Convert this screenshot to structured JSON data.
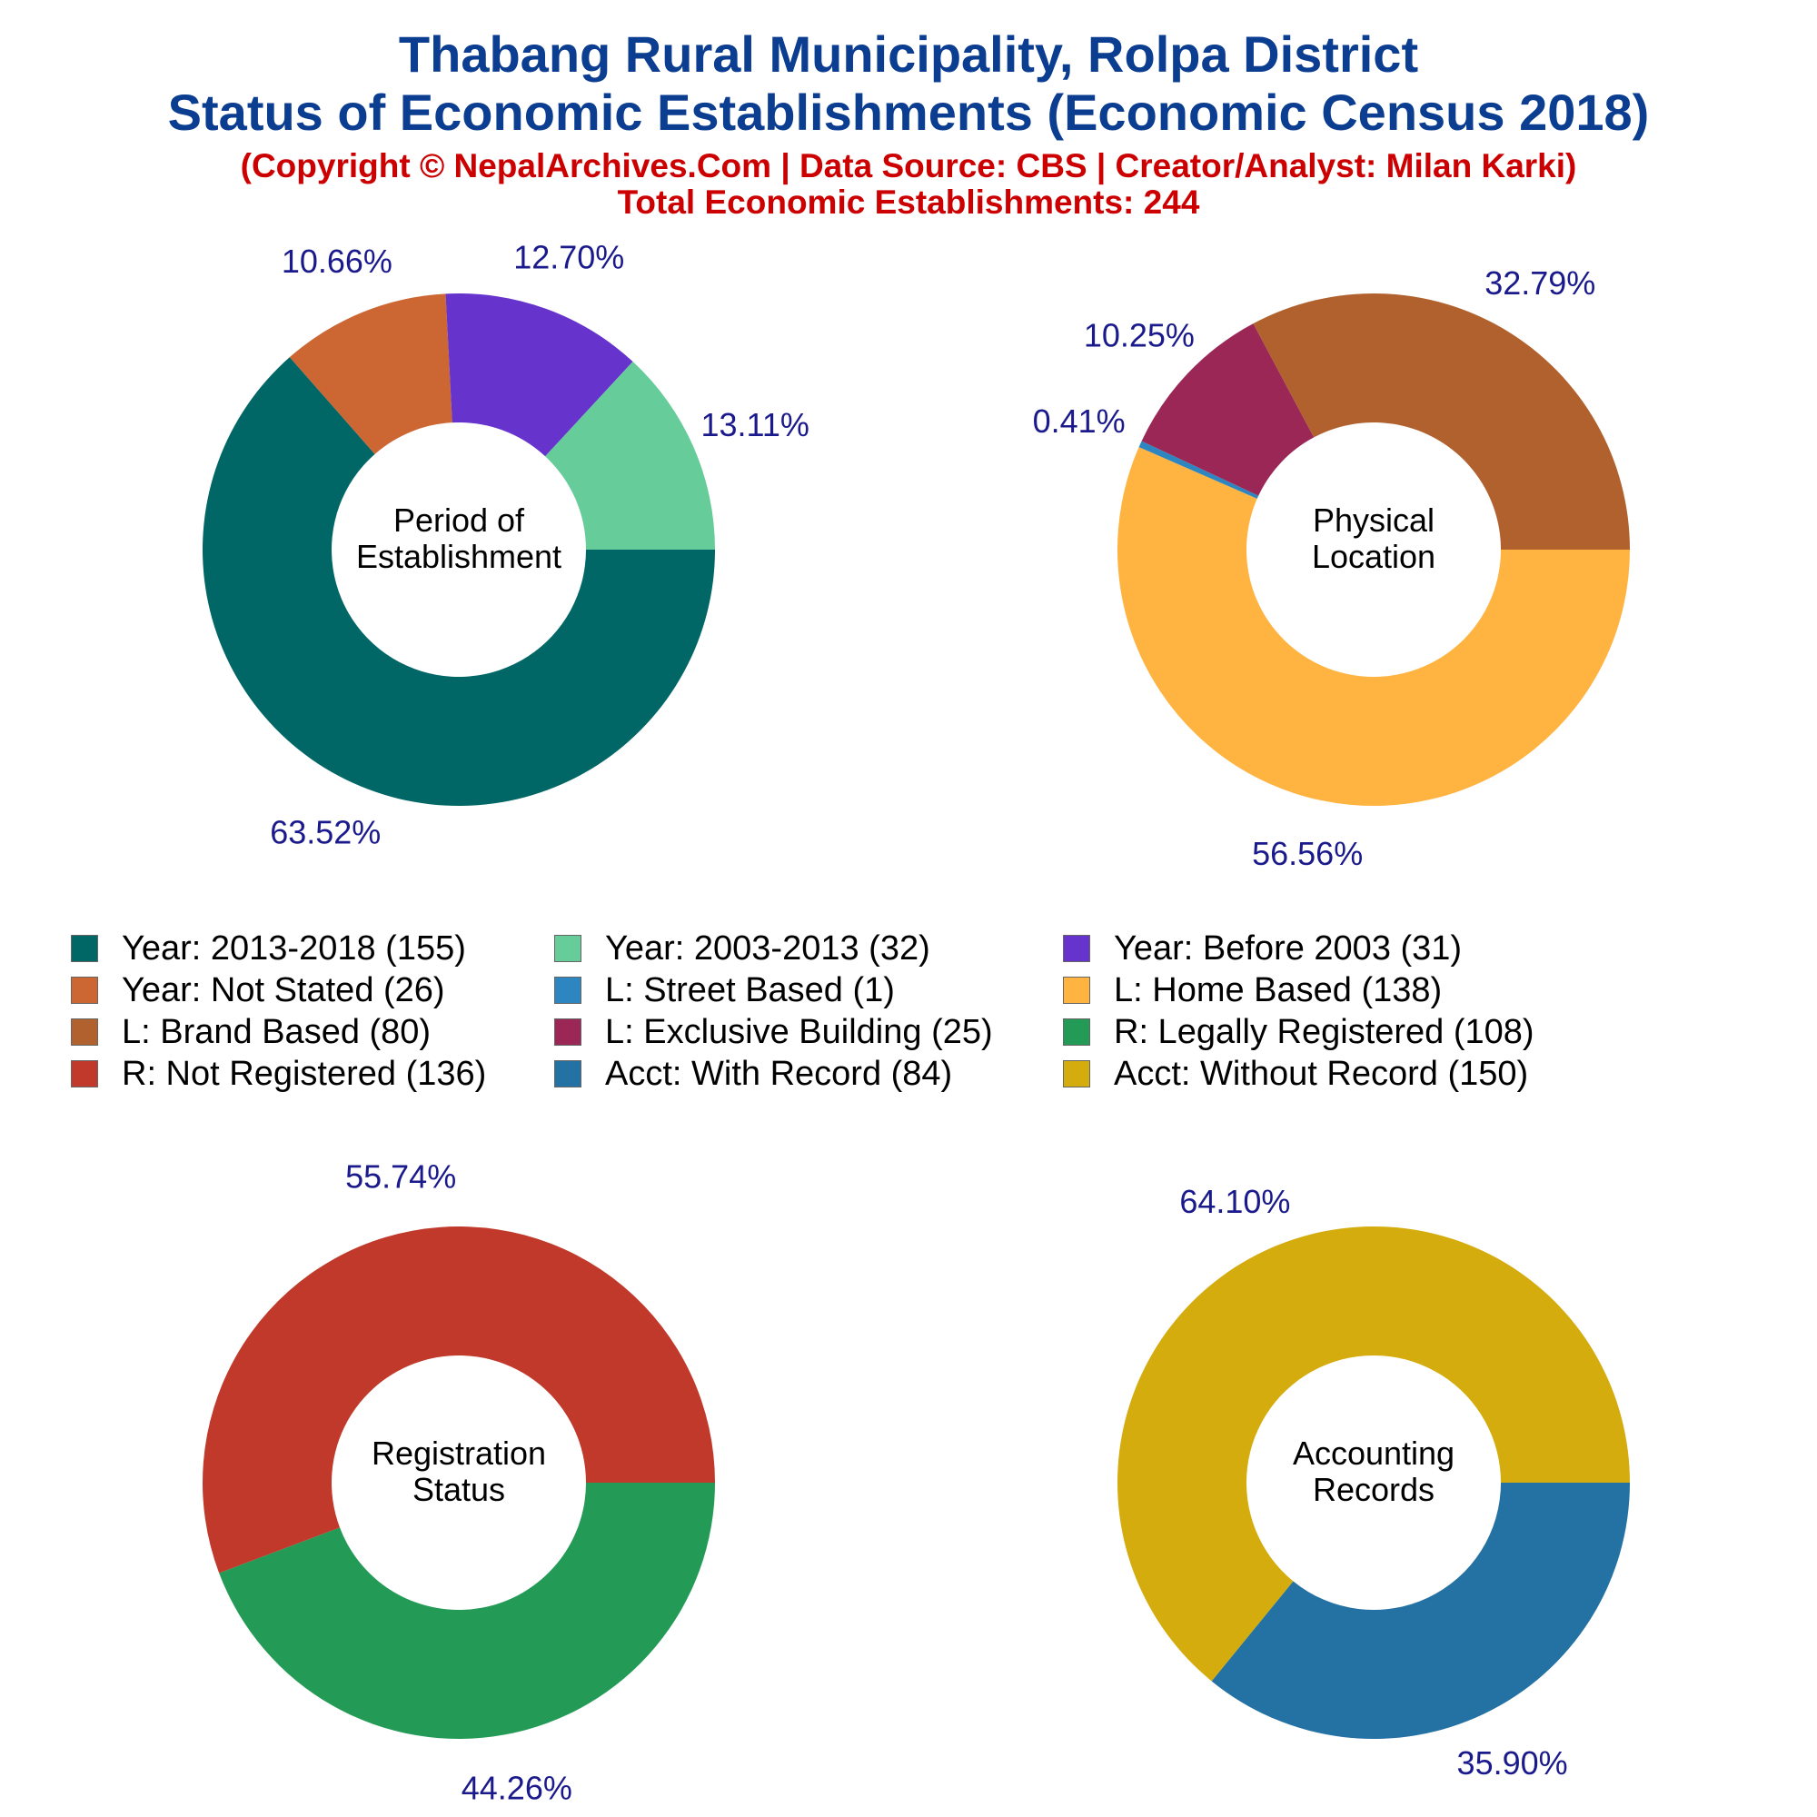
{
  "header": {
    "title_line1": "Thabang Rural Municipality, Rolpa District",
    "title_line2": "Status of Economic Establishments (Economic Census 2018)",
    "copyright": "(Copyright © NepalArchives.Com | Data Source: CBS | Creator/Analyst: Milan Karki)",
    "total": "Total Economic Establishments: 244"
  },
  "colors": {
    "title": "#0b3d91",
    "subtitle": "#cc0000",
    "percent_label": "#1a1a8c"
  },
  "legend": [
    {
      "label": "Year: 2013-2018 (155)",
      "color": "#006666"
    },
    {
      "label": "Year: 2003-2013 (32)",
      "color": "#66cc99"
    },
    {
      "label": "Year: Before 2003 (31)",
      "color": "#6633cc"
    },
    {
      "label": "Year: Not Stated (26)",
      "color": "#cc6633"
    },
    {
      "label": "L: Street Based (1)",
      "color": "#2e86c1"
    },
    {
      "label": "L: Home Based (138)",
      "color": "#ffb340"
    },
    {
      "label": "L: Brand Based (80)",
      "color": "#b0612d"
    },
    {
      "label": "L: Exclusive Building (25)",
      "color": "#9b2756"
    },
    {
      "label": "R: Legally Registered (108)",
      "color": "#239b56"
    },
    {
      "label": "R: Not Registered (136)",
      "color": "#c0392b"
    },
    {
      "label": "Acct: With Record (84)",
      "color": "#2471a3"
    },
    {
      "label": "Acct: Without Record (150)",
      "color": "#d4ac0d"
    }
  ],
  "chart_data": [
    {
      "type": "pie",
      "center_label": [
        "Period of",
        "Establishment"
      ],
      "slices": [
        {
          "name": "Year: 2013-2018",
          "value": 155,
          "label": "63.52%",
          "color": "#006666"
        },
        {
          "name": "Year: Not Stated",
          "value": 26,
          "label": "10.66%",
          "color": "#cc6633"
        },
        {
          "name": "Year: Before 2003",
          "value": 31,
          "label": "12.70%",
          "color": "#6633cc"
        },
        {
          "name": "Year: 2003-2013",
          "value": 32,
          "label": "13.11%",
          "color": "#66cc99"
        }
      ]
    },
    {
      "type": "pie",
      "center_label": [
        "Physical",
        "Location"
      ],
      "slices": [
        {
          "name": "L: Home Based",
          "value": 138,
          "label": "56.56%",
          "color": "#ffb340"
        },
        {
          "name": "L: Street Based",
          "value": 1,
          "label": "0.41%",
          "color": "#2e86c1"
        },
        {
          "name": "L: Exclusive Building",
          "value": 25,
          "label": "10.25%",
          "color": "#9b2756"
        },
        {
          "name": "L: Brand Based",
          "value": 80,
          "label": "32.79%",
          "color": "#b0612d"
        }
      ]
    },
    {
      "type": "pie",
      "center_label": [
        "Registration",
        "Status"
      ],
      "slices": [
        {
          "name": "R: Legally Registered",
          "value": 108,
          "label": "44.26%",
          "color": "#239b56"
        },
        {
          "name": "R: Not Registered",
          "value": 136,
          "label": "55.74%",
          "color": "#c0392b"
        }
      ]
    },
    {
      "type": "pie",
      "center_label": [
        "Accounting",
        "Records"
      ],
      "slices": [
        {
          "name": "Acct: With Record",
          "value": 84,
          "label": "35.90%",
          "color": "#2471a3"
        },
        {
          "name": "Acct: Without Record",
          "value": 150,
          "label": "64.10%",
          "color": "#d4ac0d"
        }
      ]
    }
  ]
}
